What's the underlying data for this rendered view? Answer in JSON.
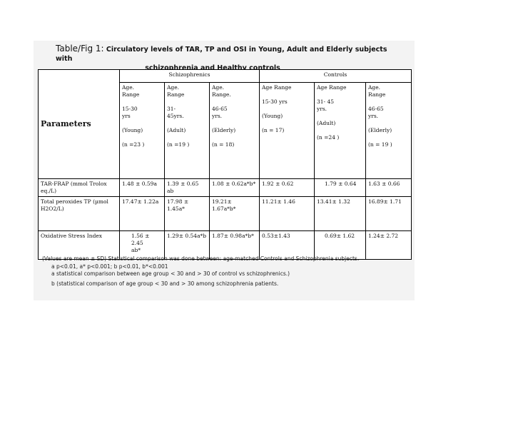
{
  "title": {
    "lead": "Table/Fig 1:",
    "line1": "Circulatory levels of TAR, TP and OSI in Young, Adult and Elderly subjects with",
    "line2": "schizophrenia and Healthy controls"
  },
  "header": {
    "parameters": "Parameters",
    "groups": [
      "Schizophrenics",
      "Controls"
    ],
    "subgroups": [
      "Age.\nRange\n\n15-30\nyrs\n\n(Young)\n\n(n =23  )",
      "Age.\nRange\n\n31-\n45yrs.\n\n(Adult)\n\n(n =19 )",
      "Age.\nRange.\n\n46-65\nyrs.\n\n(Elderly)\n\n(n = 18)",
      "Age Range\n\n15-30 yrs\n\n(Young)\n\n(n = 17)",
      "Age Range\n\n31-      45\nyrs.\n\n(Adult)\n\n(n =24 )",
      "Age.\nRange\n\n46-65\nyrs.\n\n(Elderly)\n\n(n = 19 )"
    ]
  },
  "rows": [
    {
      "label": "TAR-FRAP (mmol Trolox eq./L)",
      "values": [
        "1.48 ± 0.59a",
        "1.39 ± 0.65 ab",
        "1.08 ± 0.62a*b*",
        "1.92 ± 0.62",
        "1.79 ± 0.64",
        "1.63 ± 0.66"
      ]
    },
    {
      "label": "Total peroxides TP (µmol H2O2/L)",
      "values": [
        "17.47± 1.22a",
        "17.98 ± 1.45a*",
        "19.21± 1.67a*b*",
        "11.21± 1.46",
        "13.41± 1.32",
        "16.89± 1.71"
      ]
    },
    {
      "label": "Oxidative Stress Index",
      "values": [
        "1.56 ± 2.45 ab*",
        "1.29± 0.54a*b",
        "1.87± 0.98a*b*",
        "0.53±1.43",
        "0.69± 1.62",
        "1.24± 2.72"
      ]
    }
  ],
  "notes": [
    "(Values are mean ± SD) Statistical comparison was done between: age-matched Controls and Schizophrenia subjects.",
    "a p<0.01, a* p<0.001; b p<0.01, b*<0.001",
    "a statistical comparison between age group < 30 and > 30 of control vs schizophrenics.)",
    "b (statistical comparison of age group < 30 and > 30 among schizophrenia patients."
  ]
}
